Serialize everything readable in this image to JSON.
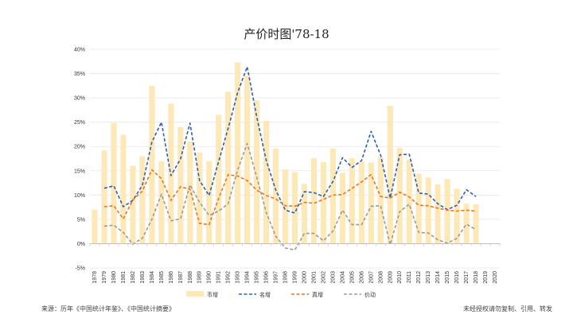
{
  "chart_data": {
    "type": "bar",
    "title": "产价时图'78-18",
    "x": [
      "1978",
      "1979",
      "1980",
      "1981",
      "1982",
      "1983",
      "1984",
      "1985",
      "1986",
      "1987",
      "1988",
      "1989",
      "1990",
      "1991",
      "1992",
      "1993",
      "1994",
      "1995",
      "1996",
      "1997",
      "1998",
      "1999",
      "2000",
      "2001",
      "2002",
      "2003",
      "2004",
      "2005",
      "2006",
      "2007",
      "2008",
      "2009",
      "2010",
      "2011",
      "2012",
      "2013",
      "2014",
      "2015",
      "2016",
      "2017",
      "2018",
      "2019",
      "2020"
    ],
    "ylim": [
      -5,
      40
    ],
    "yticks": [
      "-5%",
      "0%",
      "5%",
      "10%",
      "15%",
      "20%",
      "25%",
      "30%",
      "35%",
      "40%"
    ],
    "series": [
      {
        "name": "币增",
        "kind": "bar",
        "color": "#fde9b7",
        "values": [
          7,
          19.2,
          24.8,
          22.4,
          16,
          18,
          32.5,
          17,
          28.8,
          24,
          21,
          18.8,
          17,
          26.5,
          31.3,
          37.3,
          34.5,
          29.5,
          25.3,
          19.6,
          15.3,
          14.7,
          12.3,
          17.6,
          16.8,
          19.6,
          14.6,
          17.6,
          16.9,
          16.7,
          17.8,
          28.4,
          19.7,
          17.3,
          14.4,
          13.6,
          12.2,
          13.3,
          11.3,
          8.2,
          8.1,
          null,
          null
        ]
      },
      {
        "name": "名增",
        "kind": "line",
        "color": "#2e5eb8",
        "dash": "4,2.5",
        "values": [
          null,
          11.4,
          11.9,
          7.6,
          8.9,
          12,
          20.9,
          25,
          14,
          17.4,
          24.8,
          13,
          9.9,
          16.9,
          23.7,
          31.1,
          36.4,
          26.1,
          17.1,
          11,
          6.9,
          6.3,
          10.7,
          10.5,
          9.7,
          12.8,
          17.7,
          15.7,
          17.1,
          23.1,
          18.2,
          9.4,
          18.3,
          18.4,
          10.4,
          10.2,
          8.2,
          7,
          7.9,
          11.1,
          9.7,
          null,
          null
        ]
      },
      {
        "name": "真增",
        "kind": "line",
        "color": "#e8772a",
        "dash": "4,2.5",
        "values": [
          null,
          7.6,
          7.8,
          5.1,
          9,
          10.8,
          15.2,
          13.4,
          8.9,
          11.7,
          11.2,
          4.2,
          3.9,
          9.3,
          14.2,
          13.9,
          13,
          11,
          9.9,
          9.2,
          7.8,
          7.7,
          8.5,
          8.3,
          9.1,
          10,
          10.1,
          11.4,
          12.7,
          14.2,
          9.7,
          9.4,
          10.6,
          9.6,
          7.9,
          7.8,
          7.3,
          6.9,
          6.7,
          6.9,
          6.7,
          null,
          null
        ]
      },
      {
        "name": "价动",
        "kind": "line",
        "color": "#9b9b9b",
        "dash": "4,2.5",
        "values": [
          null,
          3.6,
          3.8,
          2.3,
          -0.1,
          1.1,
          5,
          10.2,
          4.7,
          5.1,
          12.1,
          8.5,
          5.8,
          6.7,
          8.2,
          15.2,
          20.6,
          13.7,
          6.4,
          1.5,
          -0.9,
          -1.3,
          2.1,
          2.1,
          0.6,
          2.6,
          6.9,
          3.9,
          3.9,
          7.7,
          7.8,
          -0.2,
          6.6,
          8.1,
          2.3,
          2.2,
          0.8,
          0.1,
          1.1,
          4,
          2.9,
          null,
          null
        ]
      }
    ]
  },
  "footer": {
    "source": "来源：历年《中国统计年鉴》、《中国统计摘要》",
    "note": "未经授权请勿复制、引用、转发"
  }
}
